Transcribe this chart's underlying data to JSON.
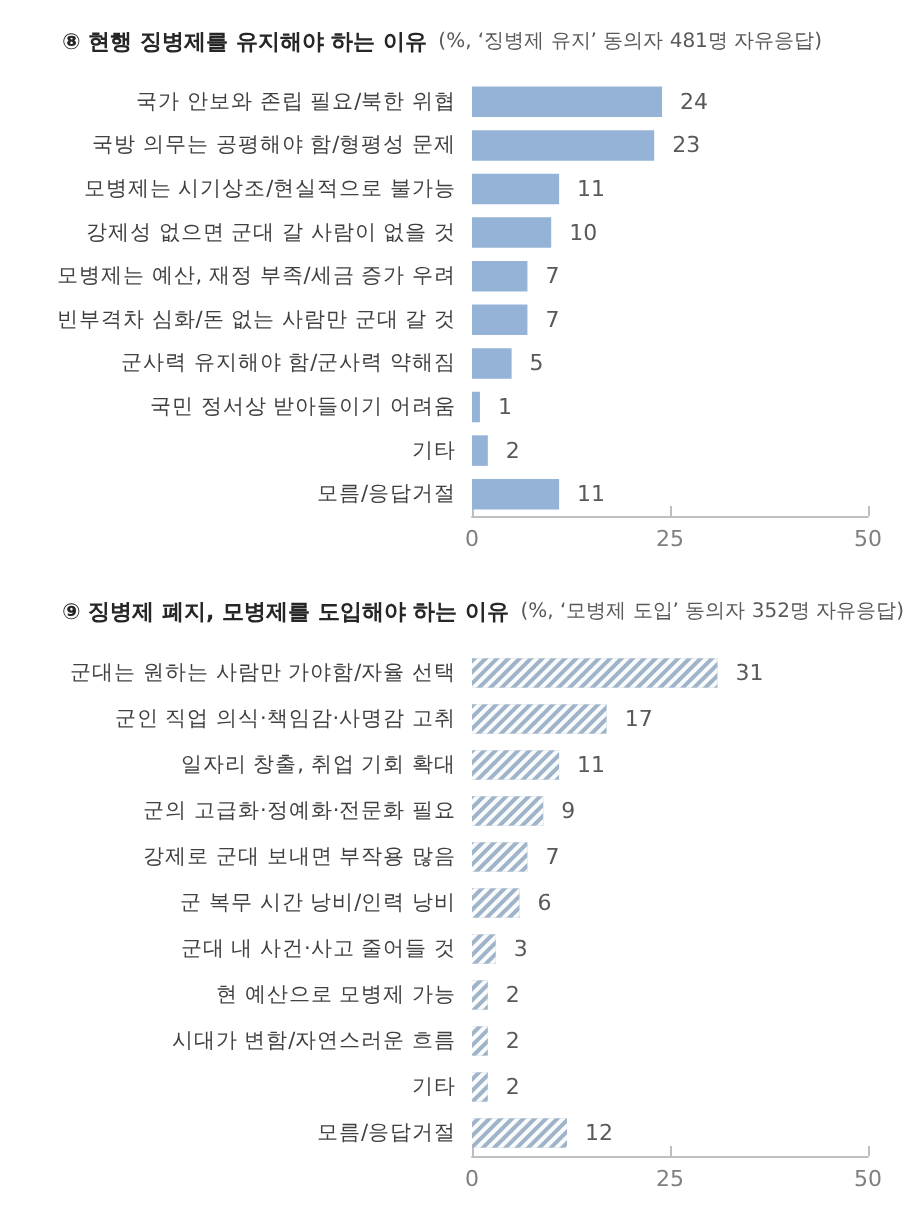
{
  "chart_data": [
    {
      "type": "bar",
      "orientation": "horizontal",
      "title": "⑧ 현행 징병제를 유지해야 하는 이유",
      "subtitle": "(%, ‘징병제 유지’ 동의자 481명 자유응답)",
      "categories": [
        "국가 안보와 존립 필요/북한 위협",
        "국방 의무는 공평해야 함/형평성 문제",
        "모병제는 시기상조/현실적으로 불가능",
        "강제성 없으면 군대 갈 사람이 없을 것",
        "모병제는 예산, 재정 부족/세금 증가 우려",
        "빈부격차 심화/돈 없는 사람만 군대 갈 것",
        "군사력 유지해야 함/군사력 약해짐",
        "국민 정서상 받아들이기 어려움",
        "기타",
        "모름/응답거절"
      ],
      "values": [
        24,
        23,
        11,
        10,
        7,
        7,
        5,
        1,
        2,
        11
      ],
      "color": "#95b3d7",
      "xlim": [
        0,
        50
      ],
      "xticks": [
        0,
        25,
        50
      ],
      "data_labels": true
    },
    {
      "type": "bar",
      "orientation": "horizontal",
      "title": "⑨ 징병제 폐지, 모병제를 도입해야 하는 이유",
      "subtitle": "(%, ‘모병제 도입’ 동의자 352명 자유응답)",
      "categories": [
        "군대는 원하는 사람만 가야함/자율 선택",
        "군인 직업 의식·책임감·사명감 고취",
        "일자리 창출, 취업 기회 확대",
        "군의 고급화·정예화·전문화 필요",
        "강제로 군대 보내면 부작용 많음",
        "군 복무 시간 낭비/인력 낭비",
        "군대 내 사건·사고 줄어들 것",
        "현 예산으로 모병제 가능",
        "시대가 변함/자연스러운 흐름",
        "기타",
        "모름/응답거절"
      ],
      "values": [
        31,
        17,
        11,
        9,
        7,
        6,
        3,
        2,
        2,
        2,
        12
      ],
      "color": "#9fb4c8",
      "xlim": [
        0,
        50
      ],
      "xticks": [
        0,
        25,
        50
      ],
      "data_labels": true
    }
  ]
}
